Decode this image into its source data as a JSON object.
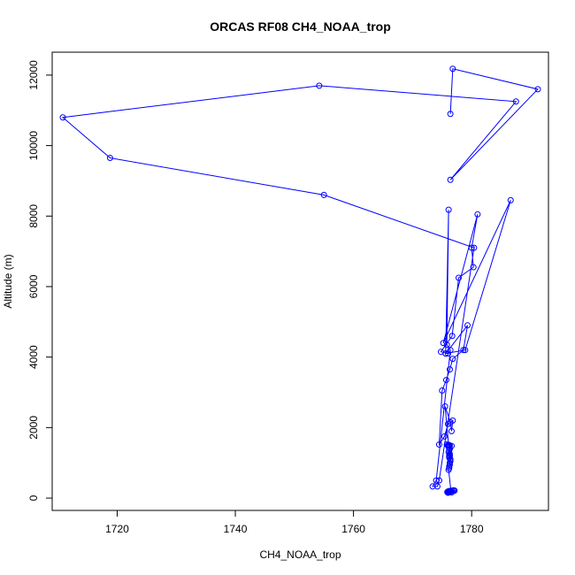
{
  "chart_data": {
    "type": "line",
    "title": "ORCAS RF08 CH4_NOAA_trop",
    "xlabel": "CH4_NOAA_trop",
    "ylabel": "Altitude (m)",
    "xlim": [
      1709,
      1793
    ],
    "ylim": [
      -350,
      12650
    ],
    "xticks": [
      "1720",
      "1740",
      "1760",
      "1780"
    ],
    "yticks": [
      "0",
      "2000",
      "4000",
      "6000",
      "8000",
      "10000",
      "12000"
    ],
    "xtick_values": [
      1720,
      1740,
      1760,
      1780
    ],
    "ytick_values": [
      0,
      2000,
      4000,
      6000,
      8000,
      10000,
      12000
    ],
    "grid": false,
    "color": "#0000ff",
    "marker": "open-circle",
    "series": [
      {
        "x": [
          1776.0,
          1776.2,
          1776.4,
          1776.6,
          1776.3,
          1776.1,
          1775.9,
          1776.2,
          1776.5,
          1776.3,
          1776.1,
          1776.4,
          1776.2,
          1776.0,
          1776.3,
          1776.5,
          1776.2,
          1775.9,
          1776.7,
          1776.9,
          1777.1,
          1777.0,
          1776.5,
          1776.1,
          1776.2,
          1776.3,
          1776.4,
          1776.2,
          1776.1,
          1776.3,
          1776.2,
          1776.4,
          1776.3,
          1776.2,
          1776.1,
          1776.3,
          1776.2,
          1776.4,
          1776.3,
          1776.2,
          1776.6,
          1776.0,
          1775.8,
          1776.3,
          1776.1,
          1775.5,
          1776.4,
          1776.6,
          1776.8,
          1776.0,
          1775.4,
          1774.5,
          1775.0,
          1775.7,
          1776.3,
          1776.8,
          1778.6,
          1779.3,
          1775.6,
          1776.0,
          1774.8,
          1776.7,
          1777.8,
          1780.3,
          1780.0,
          1781.0,
          1775.2,
          1786.6,
          1778.9,
          1775.6,
          1776.1,
          1775.8,
          1776.4,
          1774.0,
          1773.4,
          1774.2,
          1774.5,
          1780.4,
          1755.0,
          1718.8,
          1710.8,
          1754.2,
          1787.5,
          1776.4,
          1791.2,
          1776.8,
          1776.4
        ],
        "y": [
          150,
          170,
          180,
          160,
          200,
          180,
          165,
          175,
          190,
          185,
          195,
          205,
          180,
          170,
          190,
          200,
          185,
          175,
          210,
          220,
          215,
          205,
          195,
          800,
          900,
          1000,
          1100,
          1200,
          1300,
          1400,
          1500,
          1100,
          1200,
          1350,
          1450,
          1250,
          1150,
          1050,
          950,
          850,
          1480,
          1500,
          1520,
          1490,
          1510,
          2600,
          2150,
          1900,
          2200,
          2100,
          1750,
          1520,
          3050,
          3350,
          3650,
          3950,
          4200,
          4900,
          4100,
          4100,
          4150,
          4600,
          6250,
          6550,
          7100,
          8050,
          4400,
          8450,
          4200,
          4100,
          8180,
          4350,
          4200,
          500,
          330,
          330,
          500,
          7100,
          8600,
          9650,
          10800,
          11700,
          11250,
          9030,
          11600,
          12180,
          10900
        ]
      }
    ]
  }
}
